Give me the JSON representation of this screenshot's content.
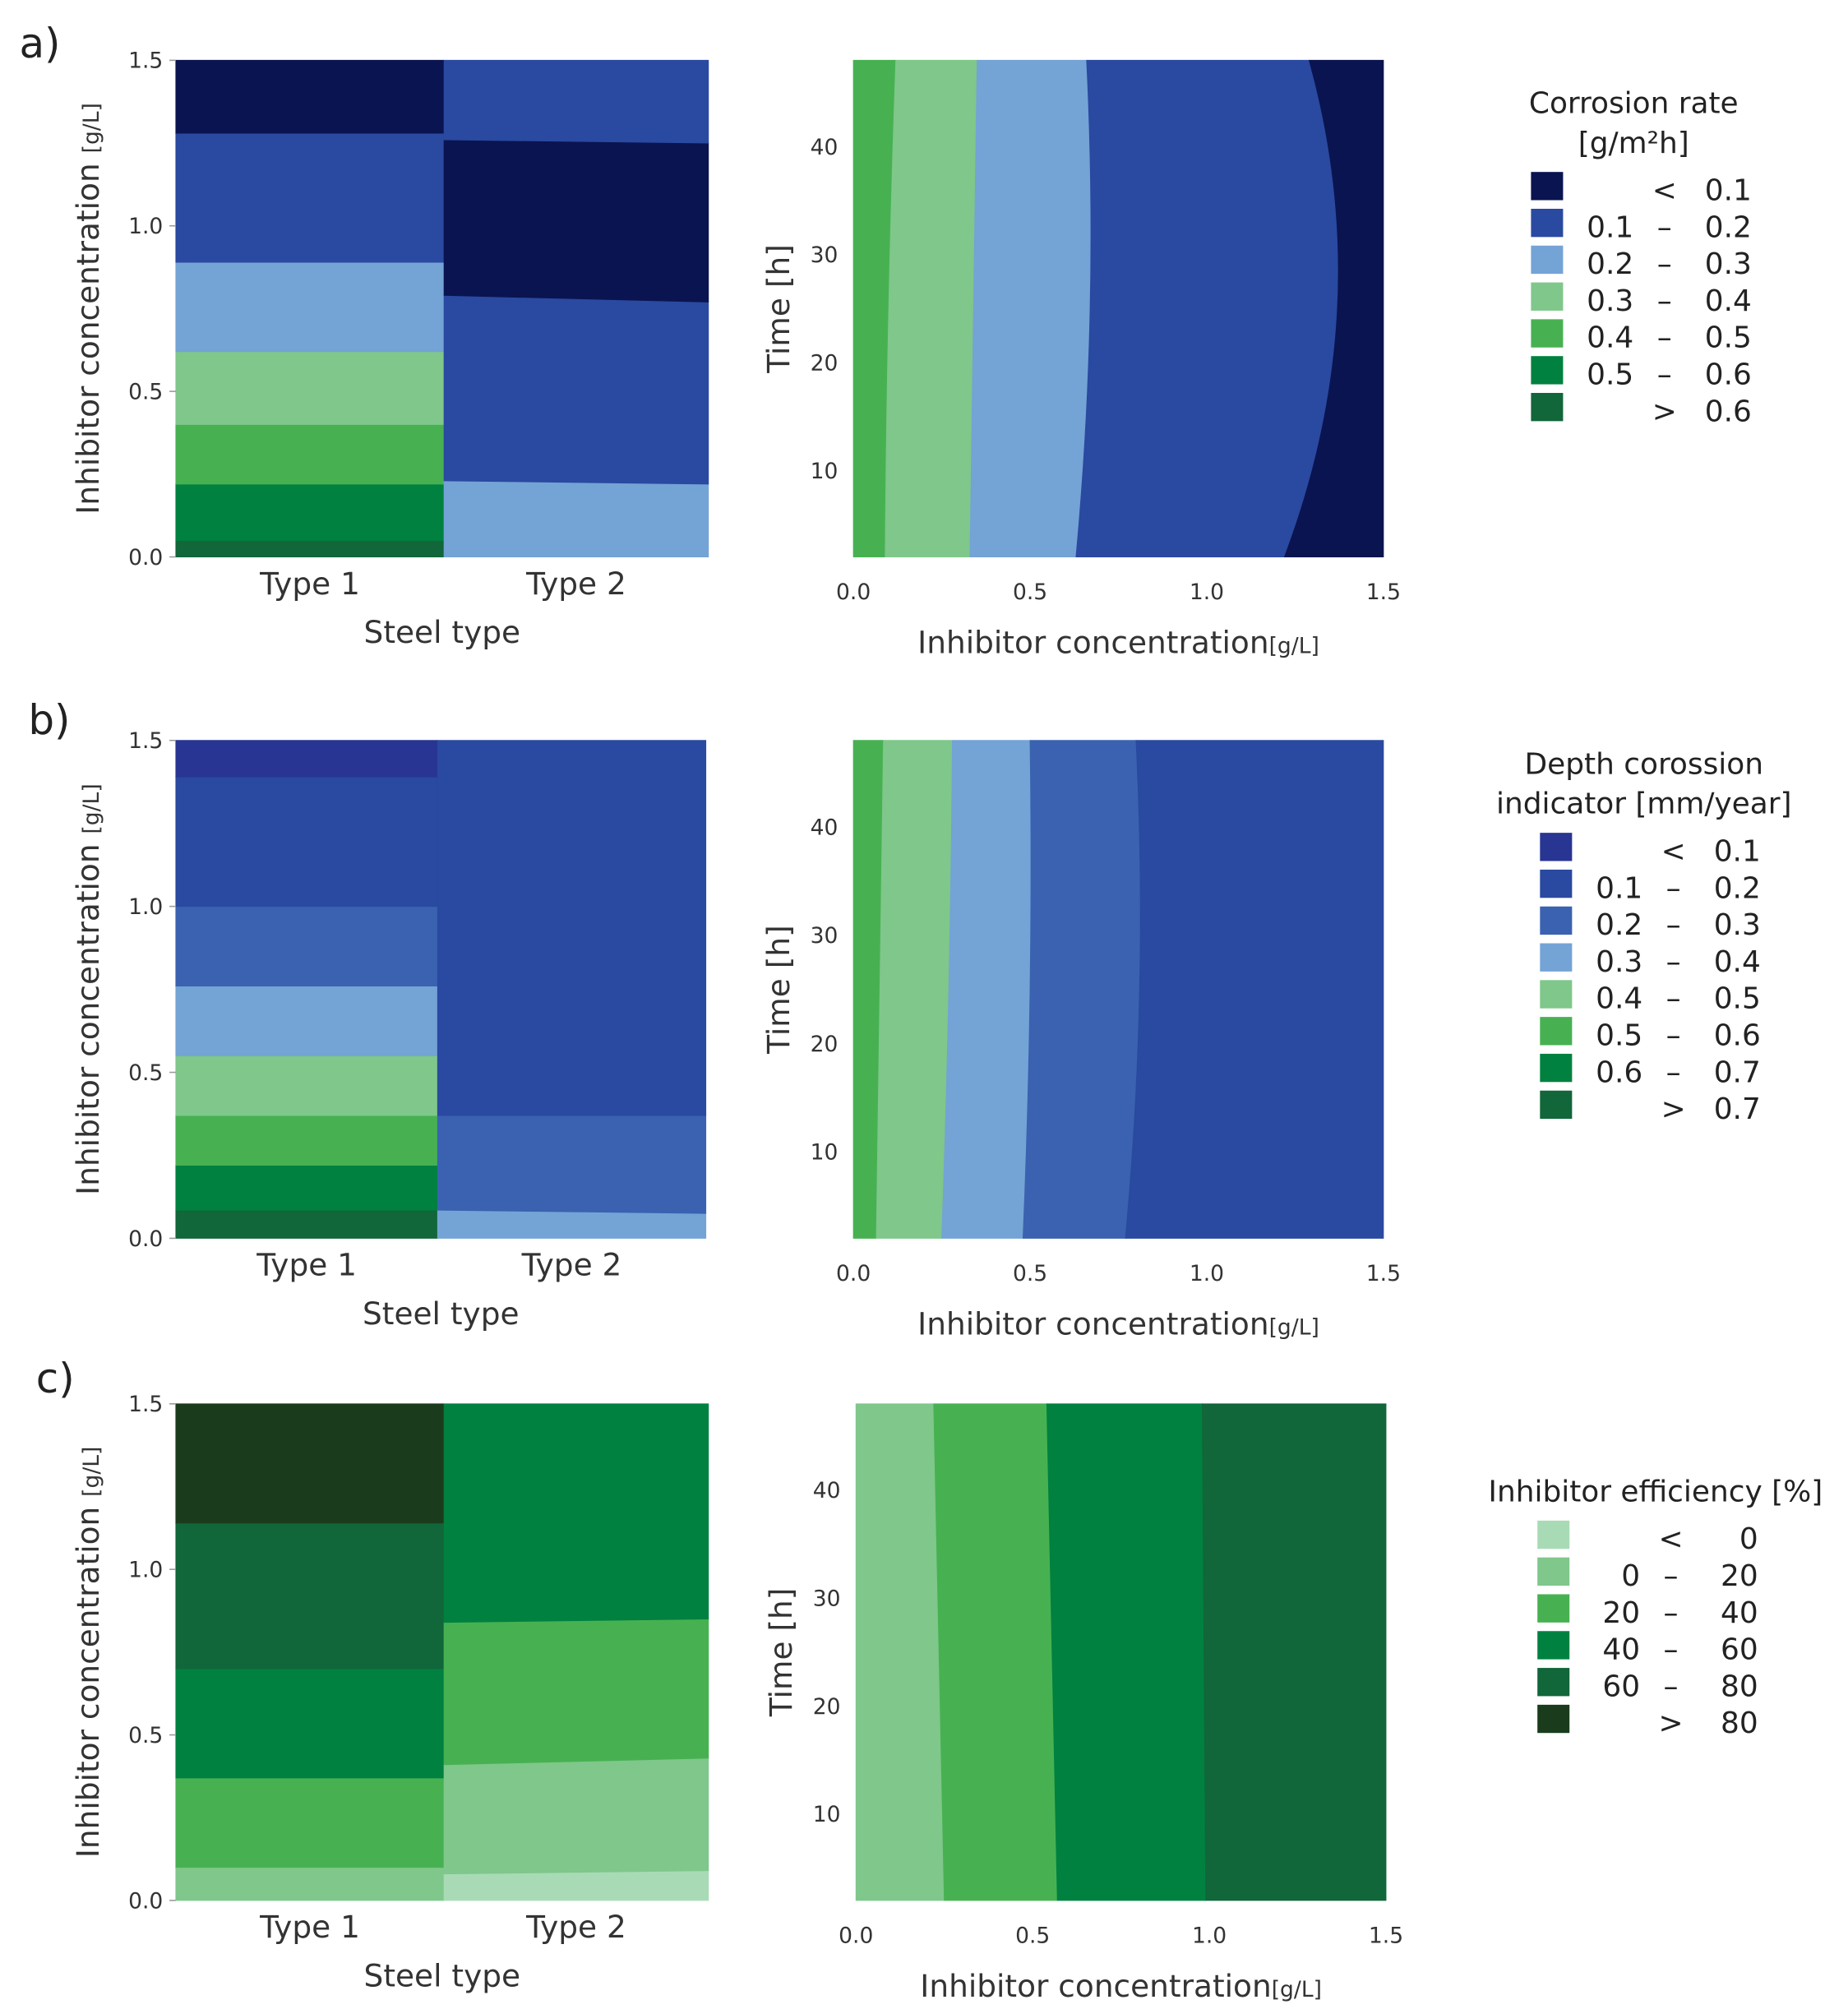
{
  "chart_data": [
    {
      "id": "a",
      "panel_label": "a)",
      "type": "heatmap",
      "legend": {
        "title": [
          "Corrosion rate",
          "[g/m²h]"
        ],
        "entries": [
          {
            "lo": "",
            "sym": "<",
            "hi": "0.1",
            "color": "#0a1450"
          },
          {
            "lo": "0.1",
            "sym": "–",
            "hi": "0.2",
            "color": "#2a49a0"
          },
          {
            "lo": "0.2",
            "sym": "–",
            "hi": "0.3",
            "color": "#74a3d6"
          },
          {
            "lo": "0.3",
            "sym": "–",
            "hi": "0.4",
            "color": "#7fc78a"
          },
          {
            "lo": "0.4",
            "sym": "–",
            "hi": "0.5",
            "color": "#47b152"
          },
          {
            "lo": "0.5",
            "sym": "–",
            "hi": "0.6",
            "color": "#008140"
          },
          {
            "lo": "",
            "sym": ">",
            "hi": "0.6",
            "color": "#11663a"
          }
        ]
      },
      "left": {
        "ylabel": "Inhibitor concentration",
        "yunit": "[g/L]",
        "xlabel": "Steel type",
        "categories": [
          "Type 1",
          "Type 2"
        ],
        "yticks": [
          "0.0",
          "0.5",
          "1.0",
          "1.5"
        ],
        "ylim": [
          0,
          1.5
        ],
        "types": [
          {
            "bands": [
              {
                "class": 6,
                "top": [
                  0.05,
                  0.05
                ]
              },
              {
                "class": 5,
                "top": [
                  0.22,
                  0.22
                ]
              },
              {
                "class": 4,
                "top": [
                  0.4,
                  0.4
                ]
              },
              {
                "class": 3,
                "top": [
                  0.62,
                  0.62
                ]
              },
              {
                "class": 2,
                "top": [
                  0.89,
                  0.89
                ]
              },
              {
                "class": 1,
                "top": [
                  1.28,
                  1.28
                ]
              },
              {
                "class": 0,
                "top": [
                  1.5,
                  1.5
                ]
              }
            ]
          },
          {
            "bands": [
              {
                "class": 2,
                "top": [
                  0.23,
                  0.22
                ]
              },
              {
                "class": 1,
                "top": [
                  0.79,
                  0.77
                ]
              },
              {
                "class": 0,
                "top": [
                  1.26,
                  1.25
                ]
              },
              {
                "class": 1,
                "top": [
                  1.5,
                  1.5
                ]
              }
            ]
          }
        ]
      },
      "right": {
        "ylabel": "Time",
        "yunit": "[h]",
        "xlabel": "Inhibitor concentration",
        "xunit": "[g/L]",
        "xticks": [
          "0.0",
          "0.5",
          "1.0",
          "1.5"
        ],
        "yticks": [
          "10",
          "20",
          "30",
          "40"
        ],
        "xlim": [
          0,
          1.5
        ],
        "ylim": [
          2,
          48
        ],
        "bands": [
          {
            "class": 4,
            "right": {
              "bottom": 0.09,
              "mid": 0.1,
              "top": 0.12
            }
          },
          {
            "class": 3,
            "right": {
              "bottom": 0.33,
              "mid": 0.34,
              "top": 0.35
            }
          },
          {
            "class": 2,
            "right": {
              "bottom": 0.63,
              "mid": 0.67,
              "top": 0.66
            }
          },
          {
            "class": 1,
            "right": {
              "bottom": 1.22,
              "mid": 1.37,
              "top": 1.29
            }
          },
          {
            "class": 0,
            "right": {
              "bottom": 1.5,
              "mid": 1.5,
              "top": 1.5
            }
          }
        ]
      }
    },
    {
      "id": "b",
      "panel_label": "b)",
      "type": "heatmap",
      "legend": {
        "title": [
          "Depth corossion",
          "indicator [mm/year]"
        ],
        "entries": [
          {
            "lo": "",
            "sym": "<",
            "hi": "0.1",
            "color": "#283593"
          },
          {
            "lo": "0.1",
            "sym": "–",
            "hi": "0.2",
            "color": "#2a49a0"
          },
          {
            "lo": "0.2",
            "sym": "–",
            "hi": "0.3",
            "color": "#3a62b0"
          },
          {
            "lo": "0.3",
            "sym": "–",
            "hi": "0.4",
            "color": "#74a3d6"
          },
          {
            "lo": "0.4",
            "sym": "–",
            "hi": "0.5",
            "color": "#7fc78a"
          },
          {
            "lo": "0.5",
            "sym": "–",
            "hi": "0.6",
            "color": "#47b152"
          },
          {
            "lo": "0.6",
            "sym": "–",
            "hi": "0.7",
            "color": "#008140"
          },
          {
            "lo": "",
            "sym": ">",
            "hi": "0.7",
            "color": "#11663a"
          }
        ]
      },
      "left": {
        "ylabel": "Inhibitor concentration",
        "yunit": "[g/L]",
        "xlabel": "Steel type",
        "categories": [
          "Type 1",
          "Type 2"
        ],
        "yticks": [
          "0.0",
          "0.5",
          "1.0",
          "1.5"
        ],
        "ylim": [
          0,
          1.5
        ],
        "types": [
          {
            "bands": [
              {
                "class": 7,
                "top": [
                  0.085,
                  0.085
                ]
              },
              {
                "class": 6,
                "top": [
                  0.22,
                  0.22
                ]
              },
              {
                "class": 5,
                "top": [
                  0.37,
                  0.37
                ]
              },
              {
                "class": 4,
                "top": [
                  0.55,
                  0.55
                ]
              },
              {
                "class": 3,
                "top": [
                  0.76,
                  0.76
                ]
              },
              {
                "class": 2,
                "top": [
                  1.0,
                  1.0
                ]
              },
              {
                "class": 1,
                "top": [
                  1.39,
                  1.39
                ]
              },
              {
                "class": 0,
                "top": [
                  1.5,
                  1.5
                ]
              }
            ]
          },
          {
            "bands": [
              {
                "class": 3,
                "top": [
                  0.085,
                  0.075
                ]
              },
              {
                "class": 2,
                "top": [
                  0.37,
                  0.37
                ]
              },
              {
                "class": 1,
                "top": [
                  1.5,
                  1.5
                ]
              }
            ]
          }
        ]
      },
      "right": {
        "ylabel": "Time",
        "yunit": "[h]",
        "xlabel": "Inhibitor concentration",
        "xunit": "[g/L]",
        "xticks": [
          "0.0",
          "0.5",
          "1.0",
          "1.5"
        ],
        "yticks": [
          "10",
          "20",
          "30",
          "40"
        ],
        "xlim": [
          0,
          1.5
        ],
        "ylim": [
          2,
          48
        ],
        "bands": [
          {
            "class": 5,
            "right": {
              "bottom": 0.065,
              "mid": 0.075,
              "top": 0.085
            }
          },
          {
            "class": 4,
            "right": {
              "bottom": 0.25,
              "mid": 0.27,
              "top": 0.28
            }
          },
          {
            "class": 3,
            "right": {
              "bottom": 0.48,
              "mid": 0.5,
              "top": 0.5
            }
          },
          {
            "class": 2,
            "right": {
              "bottom": 0.77,
              "mid": 0.81,
              "top": 0.8
            }
          },
          {
            "class": 1,
            "right": {
              "bottom": 1.5,
              "mid": 1.5,
              "top": 1.5
            }
          }
        ]
      }
    },
    {
      "id": "c",
      "panel_label": "c)",
      "type": "heatmap",
      "legend": {
        "title": [
          "Inhibitor efficiency [%]"
        ],
        "entries": [
          {
            "lo": "",
            "sym": "<",
            "hi": "0",
            "color": "#a8dbb5"
          },
          {
            "lo": "0",
            "sym": "–",
            "hi": "20",
            "color": "#7fc78a"
          },
          {
            "lo": "20",
            "sym": "–",
            "hi": "40",
            "color": "#47b152"
          },
          {
            "lo": "40",
            "sym": "–",
            "hi": "60",
            "color": "#008140"
          },
          {
            "lo": "60",
            "sym": "–",
            "hi": "80",
            "color": "#11663a"
          },
          {
            "lo": "",
            "sym": ">",
            "hi": "80",
            "color": "#1a3c1c"
          }
        ]
      },
      "left": {
        "ylabel": "Inhibitor concentration",
        "yunit": "[g/L]",
        "xlabel": "Steel type",
        "categories": [
          "Type 1",
          "Type 2"
        ],
        "yticks": [
          "0.0",
          "0.5",
          "1.0",
          "1.5"
        ],
        "ylim": [
          0,
          1.5
        ],
        "types": [
          {
            "bands": [
              {
                "class": 1,
                "top": [
                  0.1,
                  0.1
                ]
              },
              {
                "class": 2,
                "top": [
                  0.37,
                  0.37
                ]
              },
              {
                "class": 3,
                "top": [
                  0.7,
                  0.7
                ]
              },
              {
                "class": 4,
                "top": [
                  1.14,
                  1.14
                ]
              },
              {
                "class": 5,
                "top": [
                  1.5,
                  1.5
                ]
              }
            ]
          },
          {
            "bands": [
              {
                "class": 0,
                "top": [
                  0.08,
                  0.09
                ]
              },
              {
                "class": 1,
                "top": [
                  0.41,
                  0.43
                ]
              },
              {
                "class": 2,
                "top": [
                  0.84,
                  0.85
                ]
              },
              {
                "class": 3,
                "top": [
                  1.5,
                  1.5
                ]
              }
            ]
          }
        ]
      },
      "right": {
        "ylabel": "Time",
        "yunit": "[h]",
        "xlabel": "Inhibitor concentration",
        "xunit": "[g/L]",
        "xticks": [
          "0.0",
          "0.5",
          "1.0",
          "1.5"
        ],
        "yticks": [
          "10",
          "20",
          "30",
          "40"
        ],
        "xlim": [
          0,
          1.5
        ],
        "ylim": [
          2,
          48
        ],
        "bands": [
          {
            "class": 1,
            "right": {
              "bottom": 0.25,
              "mid": 0.235,
              "top": 0.22
            }
          },
          {
            "class": 2,
            "right": {
              "bottom": 0.57,
              "mid": 0.555,
              "top": 0.54
            }
          },
          {
            "class": 3,
            "right": {
              "bottom": 0.99,
              "mid": 0.985,
              "top": 0.98
            }
          },
          {
            "class": 4,
            "right": {
              "bottom": 1.5,
              "mid": 1.5,
              "top": 1.5
            }
          }
        ]
      }
    }
  ]
}
